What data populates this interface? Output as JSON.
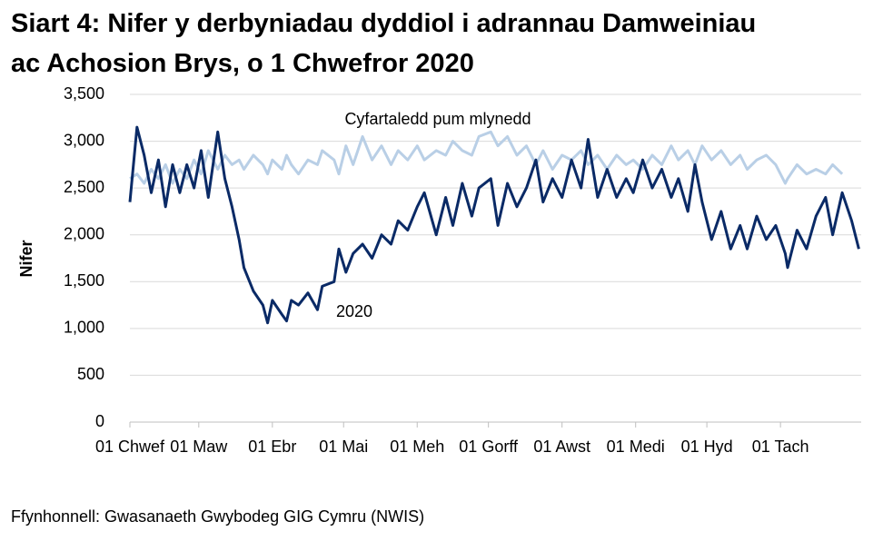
{
  "chart_data": {
    "type": "line",
    "title": "Siart 4: Nifer y derbyniadau dyddiol i adrannau Damweiniau ac Achosion Brys, o 1 Chwefror 2020",
    "y_label": "Nifer",
    "source": "Ffynhonnell: Gwasanaeth Gwybodeg GIG Cymru (NWIS)",
    "x": [
      0,
      3,
      6,
      9,
      12,
      15,
      18,
      21,
      24,
      27,
      30,
      33,
      37,
      40,
      43,
      46,
      48,
      52,
      56,
      58,
      60,
      64,
      66,
      68,
      71,
      75,
      79,
      81,
      86,
      88,
      91,
      94,
      98,
      102,
      106,
      110,
      113,
      117,
      121,
      124,
      129,
      133,
      136,
      140,
      144,
      147,
      152,
      155,
      159,
      163,
      167,
      171,
      174,
      178,
      182,
      186,
      190,
      193,
      197,
      201,
      205,
      209,
      212,
      216,
      220,
      224,
      228,
      231,
      235,
      238,
      241,
      245,
      249,
      253,
      257,
      260,
      264,
      268,
      272,
      276,
      277,
      281,
      285,
      289,
      293,
      296,
      300,
      304,
      307
    ],
    "series": [
      {
        "name": "Cyfartaledd pum mlynedd",
        "color": "#b9cfe6",
        "values": [
          2600,
          2650,
          2550,
          2700,
          2600,
          2750,
          2550,
          2700,
          2600,
          2800,
          2650,
          2900,
          2700,
          2850,
          2750,
          2800,
          2700,
          2850,
          2750,
          2650,
          2800,
          2700,
          2850,
          2750,
          2650,
          2800,
          2750,
          2900,
          2800,
          2650,
          2950,
          2750,
          3050,
          2800,
          2950,
          2750,
          2900,
          2800,
          2950,
          2800,
          2900,
          2850,
          3000,
          2900,
          2850,
          3050,
          3100,
          2950,
          3050,
          2850,
          2950,
          2750,
          2900,
          2700,
          2850,
          2800,
          2900,
          2750,
          2850,
          2700,
          2850,
          2750,
          2800,
          2700,
          2850,
          2750,
          2950,
          2800,
          2900,
          2750,
          2950,
          2800,
          2900,
          2750,
          2850,
          2700,
          2800,
          2850,
          2750,
          2550,
          2600,
          2750,
          2650,
          2700,
          2650,
          2750,
          2650,
          null,
          null
        ]
      },
      {
        "name": "2020",
        "color": "#0a2a66",
        "values": [
          2350,
          3150,
          2850,
          2450,
          2800,
          2300,
          2750,
          2450,
          2750,
          2500,
          2900,
          2400,
          3100,
          2600,
          2300,
          1950,
          1650,
          1400,
          1250,
          1060,
          1300,
          1150,
          1080,
          1300,
          1250,
          1380,
          1200,
          1450,
          1500,
          1850,
          1600,
          1800,
          1900,
          1750,
          2000,
          1900,
          2150,
          2050,
          2300,
          2450,
          2000,
          2400,
          2100,
          2550,
          2200,
          2500,
          2600,
          2100,
          2550,
          2300,
          2500,
          2800,
          2350,
          2600,
          2400,
          2800,
          2500,
          3020,
          2400,
          2700,
          2400,
          2600,
          2450,
          2800,
          2500,
          2700,
          2400,
          2600,
          2250,
          2750,
          2350,
          1950,
          2250,
          1850,
          2100,
          1850,
          2200,
          1950,
          2100,
          1800,
          1650,
          2050,
          1850,
          2200,
          2400,
          2000,
          2450,
          2150,
          1850
        ]
      }
    ],
    "xlim": [
      0,
      308
    ],
    "xticks": [
      {
        "value": 0,
        "label": "01 Chwef"
      },
      {
        "value": 29,
        "label": "01 Maw"
      },
      {
        "value": 60,
        "label": "01 Ebr"
      },
      {
        "value": 90,
        "label": "01 Mai"
      },
      {
        "value": 121,
        "label": "01 Meh"
      },
      {
        "value": 151,
        "label": "01 Gorff"
      },
      {
        "value": 182,
        "label": "01 Awst"
      },
      {
        "value": 213,
        "label": "01 Medi"
      },
      {
        "value": 243,
        "label": "01 Hyd"
      },
      {
        "value": 274,
        "label": "01 Tach"
      }
    ],
    "ylim": [
      0,
      3500
    ],
    "yticks": [
      0,
      500,
      {
        "value": 1000,
        "label": "1,000"
      },
      {
        "value": 1500,
        "label": "1,500"
      },
      {
        "value": 2000,
        "label": "2,000"
      },
      {
        "value": 2500,
        "label": "2,500"
      },
      {
        "value": 3000,
        "label": "3,000"
      },
      {
        "value": 3500,
        "label": "3,500"
      }
    ],
    "grid": true
  }
}
